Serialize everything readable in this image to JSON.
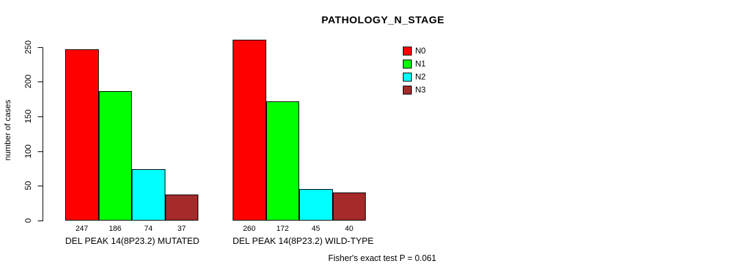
{
  "title": "PATHOLOGY_N_STAGE",
  "footer": "Fisher's exact test P = 0.061",
  "chart_data": {
    "type": "bar",
    "title": "PATHOLOGY_N_STAGE",
    "xlabel": "",
    "ylabel": "number of cases",
    "ylim": [
      0,
      260
    ],
    "yticks": [
      0,
      50,
      100,
      150,
      200,
      250
    ],
    "grid": false,
    "legend_position": "top-right",
    "series": [
      {
        "name": "N0",
        "color": "#ff0000",
        "values": [
          247,
          260
        ]
      },
      {
        "name": "N1",
        "color": "#00ff00",
        "values": [
          186,
          172
        ]
      },
      {
        "name": "N2",
        "color": "#00ffff",
        "values": [
          74,
          45
        ]
      },
      {
        "name": "N3",
        "color": "#a52a2a",
        "values": [
          37,
          40
        ]
      }
    ],
    "categories": [
      "DEL PEAK 14(8P23.2) MUTATED",
      "DEL PEAK 14(8P23.2) WILD-TYPE"
    ],
    "groups": [
      {
        "label": "DEL PEAK 14(8P23.2) MUTATED",
        "values": [
          247,
          186,
          74,
          37
        ]
      },
      {
        "label": "DEL PEAK 14(8P23.2) WILD-TYPE",
        "values": [
          260,
          172,
          45,
          40
        ]
      }
    ],
    "bar_value_labels": [
      [
        247,
        186,
        74,
        37
      ],
      [
        260,
        172,
        45,
        40
      ]
    ],
    "annotation": "Fisher's exact test P = 0.061"
  }
}
